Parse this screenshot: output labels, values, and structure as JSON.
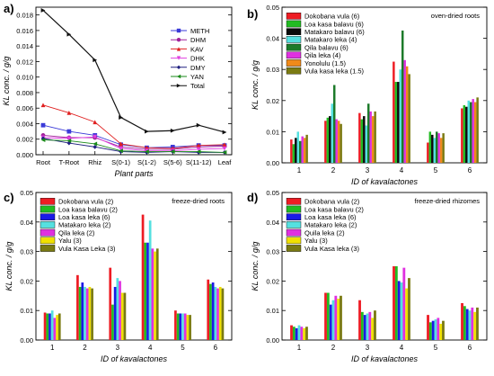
{
  "chart_data": [
    {
      "panel": "a)",
      "type": "line",
      "xlabel": "Plant parts",
      "ylabel": "KL conc. / g/g",
      "categories": [
        "Root",
        "T-Root",
        "Rhiz",
        "S(0-1)",
        "S(1-2)",
        "S(5-6)",
        "S(11-12)",
        "Leaf"
      ],
      "ylim": [
        0,
        0.019
      ],
      "yticks": [
        "0.000",
        "0.002",
        "0.004",
        "0.006",
        "0.008",
        "0.010",
        "0.012",
        "0.014",
        "0.016",
        "0.018"
      ],
      "legend_position": "top-right",
      "series": [
        {
          "name": "METH",
          "color": "#3a3ad8",
          "marker": "square",
          "values": [
            0.0038,
            0.003,
            0.0025,
            0.0013,
            0.0009,
            0.001,
            0.0012,
            0.0012
          ]
        },
        {
          "name": "DHM",
          "color": "#a0209a",
          "marker": "circle",
          "values": [
            0.0025,
            0.0022,
            0.0022,
            0.001,
            0.0007,
            0.0007,
            0.001,
            0.0011
          ]
        },
        {
          "name": "KAV",
          "color": "#e02020",
          "marker": "triangle-up",
          "values": [
            0.0064,
            0.0054,
            0.0042,
            0.0014,
            0.0009,
            0.0008,
            0.0012,
            0.0013
          ]
        },
        {
          "name": "DHK",
          "color": "#e040e0",
          "marker": "triangle-down",
          "values": [
            0.0022,
            0.0021,
            0.0023,
            0.0008,
            0.0005,
            0.0005,
            0.0007,
            0.0008
          ]
        },
        {
          "name": "DMY",
          "color": "#202080",
          "marker": "diamond",
          "values": [
            0.0021,
            0.0015,
            0.001,
            0.0004,
            0.0003,
            0.0004,
            0.0003,
            0.0003
          ]
        },
        {
          "name": "YAN",
          "color": "#1a8a1a",
          "marker": "triangle-left",
          "values": [
            0.0019,
            0.0018,
            0.0014,
            0.0005,
            0.0004,
            0.0004,
            0.0004,
            0.0003
          ]
        },
        {
          "name": "Total",
          "color": "#111111",
          "marker": "triangle-right",
          "values": [
            0.0186,
            0.0155,
            0.0122,
            0.0048,
            0.003,
            0.0031,
            0.0038,
            0.0029
          ]
        }
      ]
    },
    {
      "panel": "b)",
      "type": "bar",
      "annotation": "oven-dried roots",
      "xlabel": "ID of kavalactones",
      "ylabel": "KL conc. / g/g",
      "categories": [
        "1",
        "2",
        "3",
        "4",
        "5",
        "6"
      ],
      "ylim": [
        0,
        0.05
      ],
      "yticks": [
        "0.00",
        "0.01",
        "0.02",
        "0.03",
        "0.04",
        "0.05"
      ],
      "legend_position": "top-left",
      "series": [
        {
          "name": "Dokobana vula (6)",
          "color": "#ee1c24",
          "values": [
            0.0075,
            0.0135,
            0.016,
            0.0325,
            0.0065,
            0.0175
          ]
        },
        {
          "name": "Loa kasa balavu (6)",
          "color": "#22bb22",
          "values": [
            0.006,
            0.0145,
            0.014,
            0.026,
            0.01,
            0.0185
          ]
        },
        {
          "name": "Matakaro balavu (6)",
          "color": "#0a0a0a",
          "values": [
            0.008,
            0.015,
            0.015,
            0.026,
            0.009,
            0.018
          ]
        },
        {
          "name": "Matakaro leka (4)",
          "color": "#55e0e0",
          "values": [
            0.01,
            0.019,
            0.012,
            0.03,
            0.008,
            0.02
          ]
        },
        {
          "name": "Qila balavu (6)",
          "color": "#1c7a2a",
          "values": [
            0.007,
            0.025,
            0.019,
            0.0425,
            0.01,
            0.0195
          ]
        },
        {
          "name": "Qila leka (4)",
          "color": "#e030e0",
          "values": [
            0.0085,
            0.014,
            0.0165,
            0.033,
            0.0095,
            0.0205
          ]
        },
        {
          "name": "Yonolulu (1.5)",
          "color": "#f08a1a",
          "values": [
            0.008,
            0.0135,
            0.015,
            0.031,
            0.008,
            0.0195
          ]
        },
        {
          "name": "Vula kasa leka (1.5)",
          "color": "#7a7a12",
          "values": [
            0.009,
            0.0125,
            0.0165,
            0.0285,
            0.0095,
            0.021
          ]
        }
      ]
    },
    {
      "panel": "c)",
      "type": "bar",
      "annotation": "freeze-dried roots",
      "xlabel": "ID of kavalactones",
      "ylabel": "KL conc. / g/g",
      "categories": [
        "1",
        "2",
        "3",
        "4",
        "5",
        "6"
      ],
      "ylim": [
        0,
        0.05
      ],
      "yticks": [
        "0.00",
        "0.01",
        "0.02",
        "0.03",
        "0.04",
        "0.05"
      ],
      "legend_position": "top-left",
      "series": [
        {
          "name": "Dokobana vula (2)",
          "color": "#ee1c24",
          "values": [
            0.0093,
            0.022,
            0.0245,
            0.0425,
            0.01,
            0.0205
          ]
        },
        {
          "name": "Loa kasa balavu (2)",
          "color": "#22bb22",
          "values": [
            0.009,
            0.018,
            0.012,
            0.033,
            0.009,
            0.019
          ]
        },
        {
          "name": "Loa kasa leka (6)",
          "color": "#1a1ae6",
          "values": [
            0.009,
            0.0195,
            0.018,
            0.033,
            0.009,
            0.0195
          ]
        },
        {
          "name": "Matakaro leka (2)",
          "color": "#55e0e0",
          "values": [
            0.01,
            0.018,
            0.021,
            0.0405,
            0.009,
            0.018
          ]
        },
        {
          "name": "Qila leka (2)",
          "color": "#e030e0",
          "values": [
            0.0075,
            0.0175,
            0.02,
            0.031,
            0.009,
            0.0175
          ]
        },
        {
          "name": "Yalu (3)",
          "color": "#f0e000",
          "values": [
            0.0085,
            0.018,
            0.016,
            0.03,
            0.0085,
            0.018
          ]
        },
        {
          "name": "Vula Kasa Leka (3)",
          "color": "#7a7a12",
          "values": [
            0.009,
            0.0175,
            0.016,
            0.031,
            0.0085,
            0.0175
          ]
        }
      ]
    },
    {
      "panel": "d)",
      "type": "bar",
      "annotation": "freeze-dried rhizomes",
      "xlabel": "ID of kavalactones",
      "ylabel": "KL conc. / g/g",
      "categories": [
        "1",
        "2",
        "3",
        "4",
        "5",
        "6"
      ],
      "ylim": [
        0,
        0.05
      ],
      "yticks": [
        "0.00",
        "0.01",
        "0.02",
        "0.03",
        "0.04",
        "0.05"
      ],
      "legend_position": "top-left",
      "series": [
        {
          "name": "Dokobana vula (2)",
          "color": "#ee1c24",
          "values": [
            0.005,
            0.016,
            0.0135,
            0.025,
            0.0085,
            0.0125
          ]
        },
        {
          "name": "Loa kasa balavu (2)",
          "color": "#22bb22",
          "values": [
            0.0045,
            0.016,
            0.0095,
            0.025,
            0.006,
            0.0115
          ]
        },
        {
          "name": "Loa kasa leka (6)",
          "color": "#1a1ae6",
          "values": [
            0.004,
            0.012,
            0.0085,
            0.02,
            0.0065,
            0.0105
          ]
        },
        {
          "name": "Matakaro leka (2)",
          "color": "#55e0e0",
          "values": [
            0.005,
            0.0135,
            0.009,
            0.0195,
            0.007,
            0.01
          ]
        },
        {
          "name": "Quila leka (2)",
          "color": "#e030e0",
          "values": [
            0.0045,
            0.015,
            0.0095,
            0.0245,
            0.0075,
            0.011
          ]
        },
        {
          "name": "Yalu (3)",
          "color": "#f0e000",
          "values": [
            0.004,
            0.014,
            0.0075,
            0.0175,
            0.0055,
            0.0095
          ]
        },
        {
          "name": "Vula Kasa leka (3)",
          "color": "#7a7a12",
          "values": [
            0.0045,
            0.015,
            0.01,
            0.021,
            0.0065,
            0.011
          ]
        }
      ]
    }
  ]
}
